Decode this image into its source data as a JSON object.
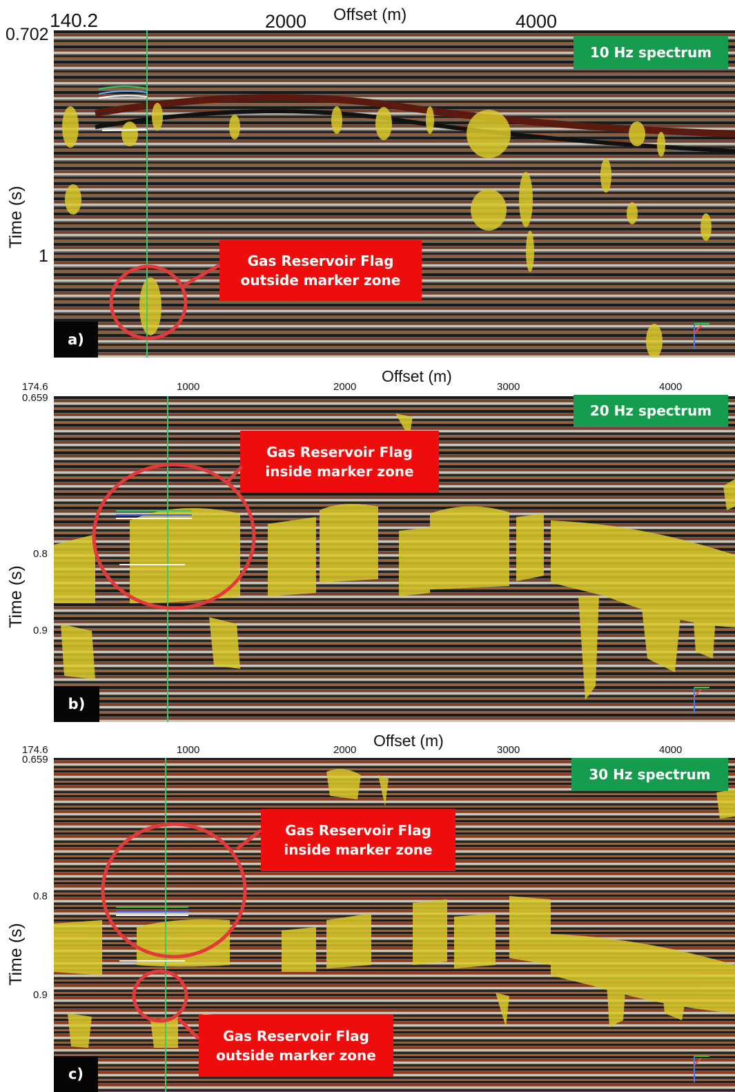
{
  "colors": {
    "badge": "#169c4e",
    "callout": "#ee0c0c",
    "circle": "#e23a3a",
    "anomaly": "#d9c92a",
    "well": "#33cc66"
  },
  "panels": [
    {
      "label": "a)",
      "spectrum": "10 Hz spectrum",
      "offset_title": "Offset (m)",
      "time_title": "Time (s)",
      "x_ticks": [
        "140.2",
        "2000",
        "4000"
      ],
      "y_ticks": [
        "0.702",
        "1"
      ],
      "callouts": [
        {
          "lines": [
            "Gas Reservoir Flag",
            "outside marker zone"
          ]
        }
      ]
    },
    {
      "label": "b)",
      "spectrum": "20 Hz spectrum",
      "offset_title": "Offset (m)",
      "time_title": "Time (s)",
      "x_ticks": [
        "174.6",
        "1000",
        "2000",
        "3000",
        "4000"
      ],
      "y_ticks": [
        "0.659",
        "0.8",
        "0.9"
      ],
      "callouts": [
        {
          "lines": [
            "Gas Reservoir Flag",
            "inside marker zone"
          ]
        }
      ]
    },
    {
      "label": "c)",
      "spectrum": "30 Hz spectrum",
      "offset_title": "Offset (m)",
      "time_title": "Time (s)",
      "x_ticks": [
        "174.6",
        "1000",
        "2000",
        "3000",
        "4000"
      ],
      "y_ticks": [
        "0.659",
        "0.8",
        "0.9"
      ],
      "callouts": [
        {
          "lines": [
            "Gas Reservoir Flag",
            "inside marker zone"
          ]
        },
        {
          "lines": [
            "Gas Reservoir Flag",
            "outside marker zone"
          ]
        }
      ]
    }
  ]
}
